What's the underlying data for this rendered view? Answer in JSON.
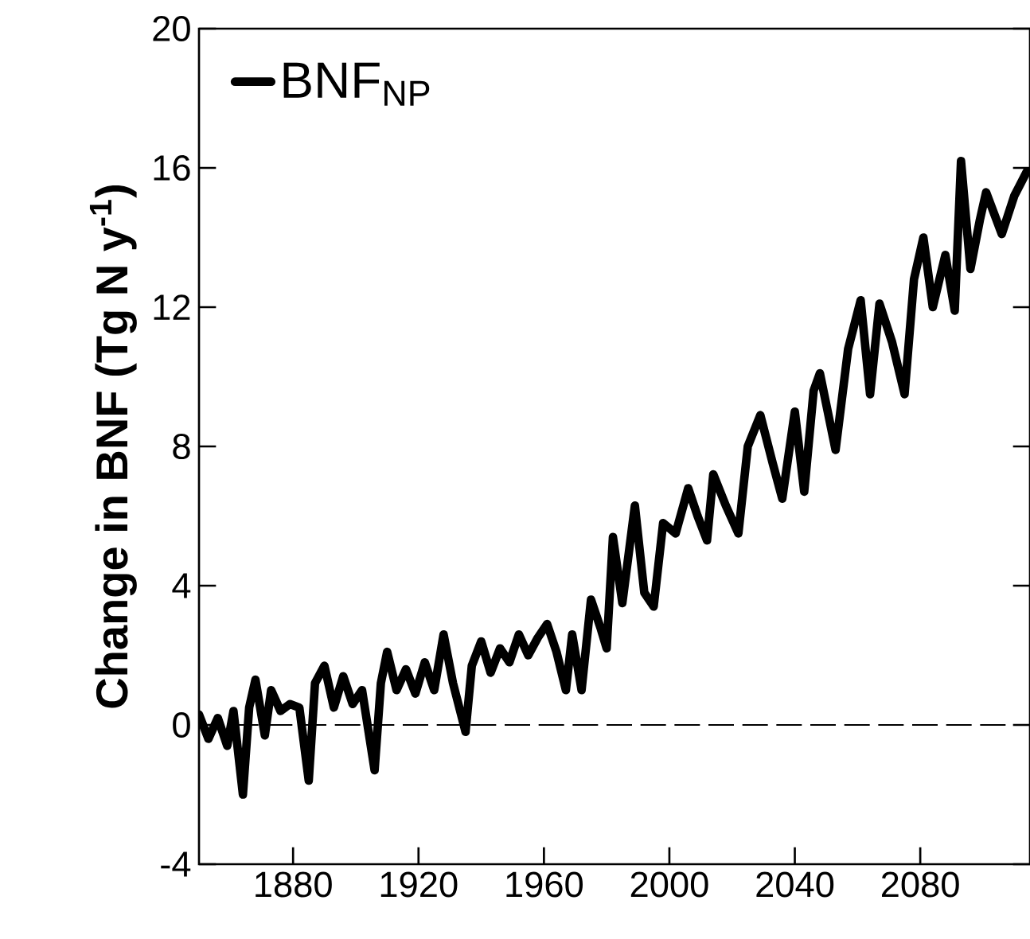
{
  "chart_data": {
    "type": "line",
    "ylabel": "Change in BNF (Tg N y$^{-1}$)",
    "xlim": [
      1850,
      2115
    ],
    "ylim": [
      -4,
      20
    ],
    "xticks": [
      1880,
      1920,
      1960,
      2000,
      2040,
      2080
    ],
    "yticks": [
      -4,
      0,
      4,
      8,
      12,
      16,
      20
    ],
    "legend": "top left",
    "grid": false,
    "ref_lines": [
      {
        "axis": "y",
        "value": 0,
        "line_style": "dashed",
        "color": "#000000"
      }
    ],
    "series": [
      {
        "name": "BNF$_{NP}$",
        "color": "#000000",
        "x": [
          1850,
          1853,
          1856,
          1859,
          1861,
          1864,
          1866,
          1868,
          1871,
          1873,
          1876,
          1879,
          1882,
          1885,
          1887,
          1890,
          1893,
          1896,
          1899,
          1902,
          1906,
          1908,
          1910,
          1913,
          1916,
          1919,
          1922,
          1925,
          1928,
          1931,
          1935,
          1937,
          1940,
          1943,
          1946,
          1949,
          1952,
          1955,
          1958,
          1961,
          1964,
          1967,
          1969,
          1972,
          1975,
          1978,
          1980,
          1982,
          1985,
          1989,
          1992,
          1995,
          1998,
          2002,
          2006,
          2009,
          2012,
          2014,
          2018,
          2022,
          2025,
          2029,
          2033,
          2036,
          2040,
          2043,
          2046,
          2048,
          2053,
          2057,
          2061,
          2064,
          2067,
          2071,
          2075,
          2078,
          2081,
          2084,
          2088,
          2091,
          2093,
          2096,
          2099,
          2101,
          2106,
          2110,
          2114
        ],
        "values": [
          0.3,
          -0.4,
          0.2,
          -0.6,
          0.4,
          -2.0,
          0.5,
          1.3,
          -0.3,
          1.0,
          0.4,
          0.6,
          0.5,
          -1.6,
          1.2,
          1.7,
          0.5,
          1.4,
          0.6,
          1.0,
          -1.3,
          1.2,
          2.1,
          1.0,
          1.6,
          0.9,
          1.8,
          1.0,
          2.6,
          1.2,
          -0.2,
          1.7,
          2.4,
          1.5,
          2.2,
          1.8,
          2.6,
          2.0,
          2.5,
          2.9,
          2.1,
          1.0,
          2.6,
          1.0,
          3.6,
          2.8,
          2.2,
          5.4,
          3.5,
          6.3,
          3.8,
          3.4,
          5.8,
          5.5,
          6.8,
          6.0,
          5.3,
          7.2,
          6.3,
          5.5,
          8.0,
          8.9,
          7.5,
          6.5,
          9.0,
          6.7,
          9.6,
          10.1,
          7.9,
          10.8,
          12.2,
          9.5,
          12.1,
          11.0,
          9.5,
          12.8,
          14.0,
          12.0,
          13.5,
          11.9,
          16.2,
          13.1,
          14.5,
          15.3,
          14.1,
          15.2,
          15.9
        ]
      }
    ]
  }
}
